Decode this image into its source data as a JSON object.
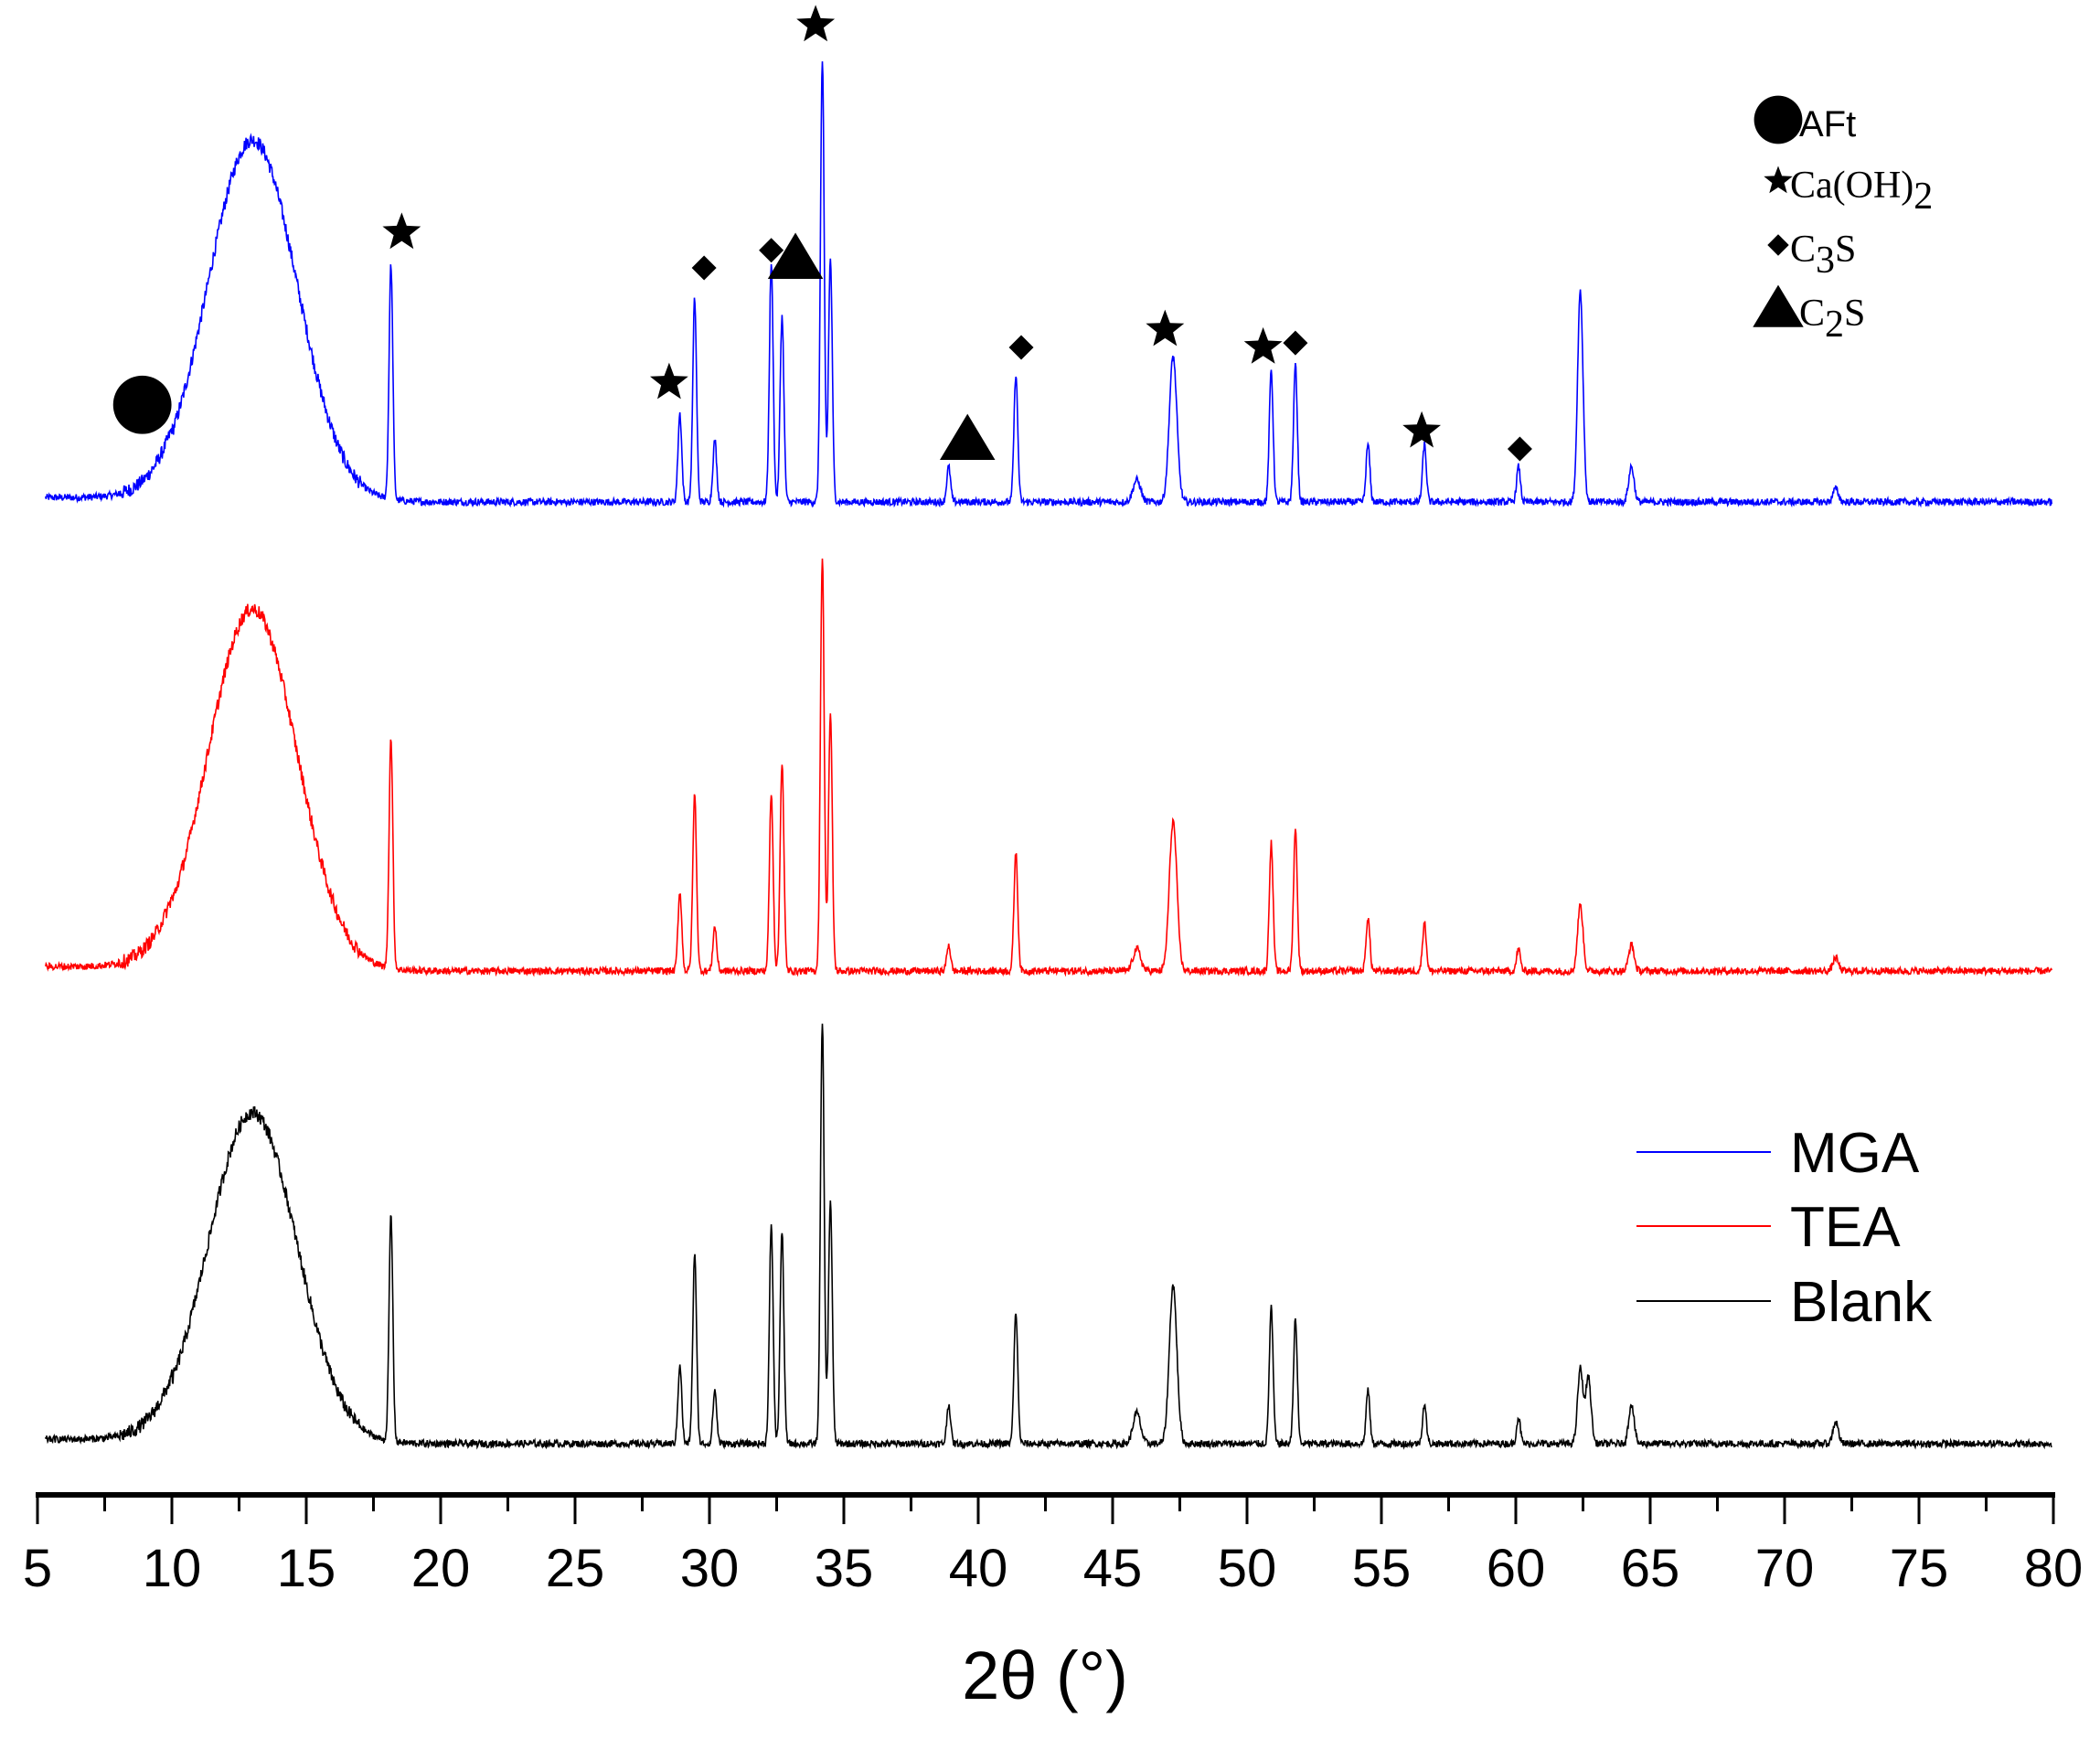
{
  "chart_data": {
    "type": "line",
    "title": "",
    "xlabel": "2θ (°)",
    "ylabel": "",
    "xlim": [
      5,
      80
    ],
    "x_ticks": [
      "5",
      "10",
      "15",
      "20",
      "25",
      "30",
      "35",
      "40",
      "45",
      "50",
      "55",
      "60",
      "65",
      "70",
      "75",
      "80"
    ],
    "y_axis_shown": false,
    "grid": false,
    "legend_position": "lower-right",
    "series": [
      {
        "name": "MGA",
        "color": "#0000ff",
        "hump": {
          "center": 13.0,
          "height": 82
        },
        "peaks": [
          [
            18.15,
            53
          ],
          [
            28.9,
            20
          ],
          [
            29.45,
            46
          ],
          [
            30.2,
            14
          ],
          [
            32.3,
            54
          ],
          [
            32.7,
            42
          ],
          [
            34.2,
            100
          ],
          [
            34.5,
            55
          ],
          [
            38.9,
            8
          ],
          [
            41.4,
            29
          ],
          [
            45.9,
            5
          ],
          [
            47.25,
            33
          ],
          [
            50.9,
            30
          ],
          [
            51.8,
            31
          ],
          [
            54.5,
            13
          ],
          [
            56.6,
            13
          ],
          [
            60.1,
            8
          ],
          [
            62.4,
            48
          ],
          [
            64.3,
            8
          ],
          [
            71.9,
            3
          ]
        ]
      },
      {
        "name": "TEA",
        "color": "#ff0000",
        "hump": {
          "center": 13.0,
          "height": 82
        },
        "peaks": [
          [
            18.15,
            52
          ],
          [
            28.9,
            18
          ],
          [
            29.45,
            40
          ],
          [
            30.2,
            10
          ],
          [
            32.3,
            40
          ],
          [
            32.7,
            47
          ],
          [
            34.2,
            94
          ],
          [
            34.5,
            58
          ],
          [
            38.9,
            6
          ],
          [
            41.4,
            27
          ],
          [
            45.9,
            5
          ],
          [
            47.25,
            34
          ],
          [
            50.9,
            29
          ],
          [
            51.8,
            32
          ],
          [
            54.5,
            12
          ],
          [
            56.6,
            11
          ],
          [
            60.1,
            5
          ],
          [
            62.4,
            15
          ],
          [
            64.3,
            6
          ],
          [
            71.9,
            3
          ]
        ]
      },
      {
        "name": "Blank",
        "color": "#000000",
        "hump": {
          "center": 13.0,
          "height": 75
        },
        "peaks": [
          [
            18.15,
            51
          ],
          [
            28.9,
            18
          ],
          [
            29.45,
            43
          ],
          [
            30.2,
            12
          ],
          [
            32.3,
            49
          ],
          [
            32.7,
            48
          ],
          [
            34.2,
            95
          ],
          [
            34.5,
            55
          ],
          [
            38.9,
            9
          ],
          [
            41.4,
            30
          ],
          [
            45.9,
            7
          ],
          [
            47.25,
            36
          ],
          [
            50.9,
            31
          ],
          [
            51.8,
            28
          ],
          [
            54.5,
            12
          ],
          [
            56.6,
            9
          ],
          [
            60.1,
            6
          ],
          [
            62.4,
            17
          ],
          [
            62.7,
            15
          ],
          [
            64.3,
            9
          ],
          [
            71.9,
            5
          ]
        ]
      }
    ],
    "phase_legend": [
      {
        "symbol": "circle",
        "label": "AFt"
      },
      {
        "symbol": "star",
        "label": "Ca(OH)",
        "sub": "2"
      },
      {
        "symbol": "diamond",
        "label": "C",
        "sub": "3",
        "tail": "S"
      },
      {
        "symbol": "triangle",
        "label": "C",
        "sub": "2",
        "tail": "S"
      }
    ],
    "annotations": [
      {
        "symbol": "circle",
        "x": 8.9,
        "y": 22
      },
      {
        "symbol": "star",
        "x": 18.55,
        "y": 61
      },
      {
        "symbol": "star",
        "x": 28.5,
        "y": 27
      },
      {
        "symbol": "star",
        "x": 33.95,
        "y": 108
      },
      {
        "symbol": "star",
        "x": 46.95,
        "y": 39
      },
      {
        "symbol": "star",
        "x": 50.6,
        "y": 35
      },
      {
        "symbol": "star",
        "x": 56.5,
        "y": 16
      },
      {
        "symbol": "diamond",
        "x": 29.8,
        "y": 53
      },
      {
        "symbol": "diamond",
        "x": 32.3,
        "y": 57
      },
      {
        "symbol": "diamond",
        "x": 41.6,
        "y": 35
      },
      {
        "symbol": "diamond",
        "x": 51.8,
        "y": 36
      },
      {
        "symbol": "diamond",
        "x": 60.15,
        "y": 12
      },
      {
        "symbol": "triangle",
        "x": 33.2,
        "y": 55
      },
      {
        "symbol": "triangle",
        "x": 39.6,
        "y": 14
      }
    ]
  }
}
